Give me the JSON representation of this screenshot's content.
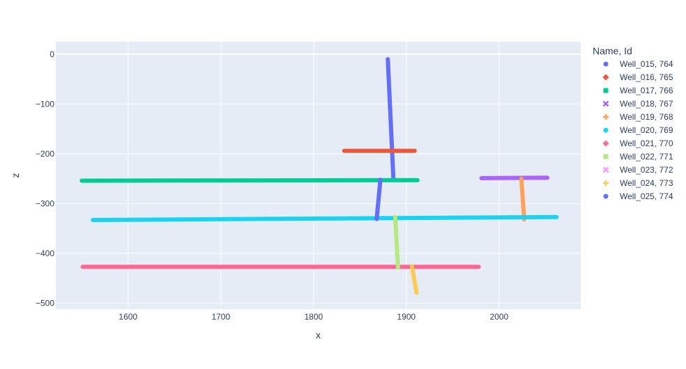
{
  "chart_data": {
    "type": "line",
    "xlabel": "x",
    "ylabel": "z",
    "xlim": [
      1522,
      2088
    ],
    "ylim": [
      -512,
      25
    ],
    "x_ticks": [
      1600,
      1700,
      1800,
      1900,
      2000
    ],
    "y_ticks": [
      0,
      -100,
      -200,
      -300,
      -400,
      -500
    ],
    "y_tick_labels": [
      "0",
      "−100",
      "−200",
      "−300",
      "−400",
      "−500"
    ],
    "grid": true,
    "legend": {
      "title": "Name, Id",
      "placement": "right"
    },
    "series": [
      {
        "name": "Well_015, 764",
        "color": "#636efa",
        "symbol": "circle",
        "x": [
          1880,
          1886
        ],
        "z": [
          -10,
          -250
        ]
      },
      {
        "name": "Well_016, 765",
        "color": "#EF553B",
        "symbol": "diamond",
        "x": [
          1833,
          1909
        ],
        "z": [
          -194,
          -194
        ]
      },
      {
        "name": "Well_017, 766",
        "color": "#00cc96",
        "symbol": "square",
        "x": [
          1550,
          1912
        ],
        "z": [
          -254,
          -253
        ]
      },
      {
        "name": "Well_018, 767",
        "color": "#ab63fa",
        "symbol": "x",
        "x": [
          1981,
          2052
        ],
        "z": [
          -249,
          -248
        ]
      },
      {
        "name": "Well_019, 768",
        "color": "#FFA15A",
        "symbol": "cross",
        "x": [
          2024,
          2027
        ],
        "z": [
          -250,
          -332
        ]
      },
      {
        "name": "Well_020, 769",
        "color": "#19d3f3",
        "symbol": "circle",
        "x": [
          1562,
          2062
        ],
        "z": [
          -333,
          -327
        ]
      },
      {
        "name": "Well_021, 770",
        "color": "#FF6692",
        "symbol": "diamond",
        "x": [
          1551,
          1978
        ],
        "z": [
          -427,
          -427
        ]
      },
      {
        "name": "Well_022, 771",
        "color": "#B6E880",
        "symbol": "square",
        "x": [
          1888,
          1891
        ],
        "z": [
          -327,
          -428
        ]
      },
      {
        "name": "Well_023, 772",
        "color": "#FF97FF",
        "symbol": "x",
        "x": [],
        "z": []
      },
      {
        "name": "Well_024, 773",
        "color": "#FECB52",
        "symbol": "cross",
        "x": [
          1906,
          1911
        ],
        "z": [
          -426,
          -479
        ]
      },
      {
        "name": "Well_025, 774",
        "color": "#636efa",
        "symbol": "circle",
        "x": [
          1872,
          1868
        ],
        "z": [
          -252,
          -331
        ]
      }
    ]
  }
}
